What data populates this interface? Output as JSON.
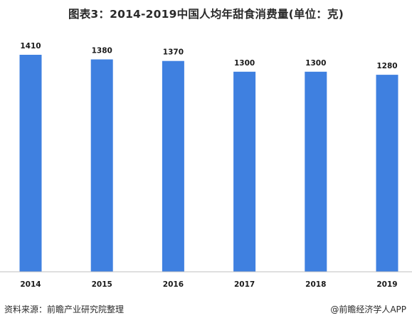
{
  "title": "图表3：2014-2019中国人均年甜食消费量(单位：克)",
  "chart_data": {
    "type": "bar",
    "title": "图表3：2014-2019中国人均年甜食消费量(单位：克)",
    "categories": [
      "2014",
      "2015",
      "2016",
      "2017",
      "2018",
      "2019"
    ],
    "values": [
      1410,
      1380,
      1370,
      1300,
      1300,
      1280
    ],
    "value_labels": [
      "1410",
      "1380",
      "1370",
      "1300",
      "1300",
      "1280"
    ],
    "xlabel": "",
    "ylabel": "",
    "ylim": [
      0,
      1410
    ],
    "grid": false,
    "legend": "none",
    "bar_color": "#3f80e0",
    "axis_color": "#bfbfbf"
  },
  "footer": {
    "source": "资料来源：前瞻产业研究院整理",
    "credit": "@前瞻经济学人APP"
  }
}
